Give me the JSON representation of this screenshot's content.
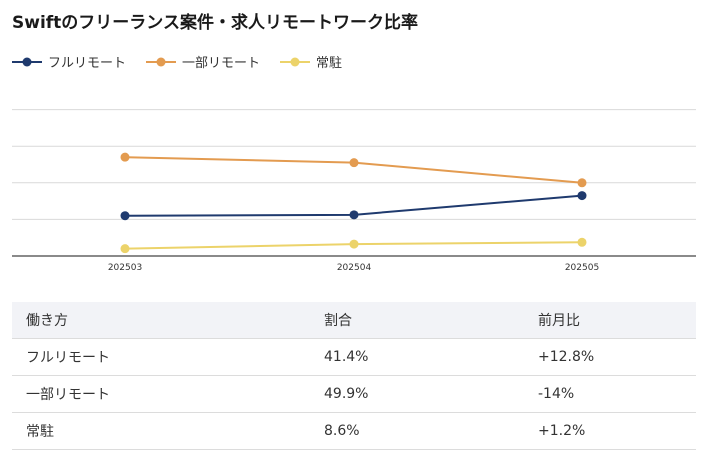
{
  "title": "Swiftのフリーランス案件・求人リモートワーク比率",
  "chart_data": {
    "type": "line",
    "x": [
      "202503",
      "202504",
      "202505"
    ],
    "ylim": [
      0,
      100
    ],
    "gridlines": [
      0,
      20,
      40,
      60,
      80
    ],
    "legend_position": "top-left",
    "series": [
      {
        "name": "フルリモート",
        "color": "#1f3a6e",
        "values": [
          22,
          22.5,
          33
        ]
      },
      {
        "name": "一部リモート",
        "color": "#e39b50",
        "values": [
          54,
          51,
          40
        ]
      },
      {
        "name": "常駐",
        "color": "#ecd36a",
        "values": [
          4,
          6.5,
          7.5
        ]
      }
    ]
  },
  "table": {
    "headers": [
      "働き方",
      "割合",
      "前月比"
    ],
    "rows": [
      [
        "フルリモート",
        "41.4%",
        "+12.8%"
      ],
      [
        "一部リモート",
        "49.9%",
        "-14%"
      ],
      [
        "常駐",
        "8.6%",
        "+1.2%"
      ]
    ]
  }
}
